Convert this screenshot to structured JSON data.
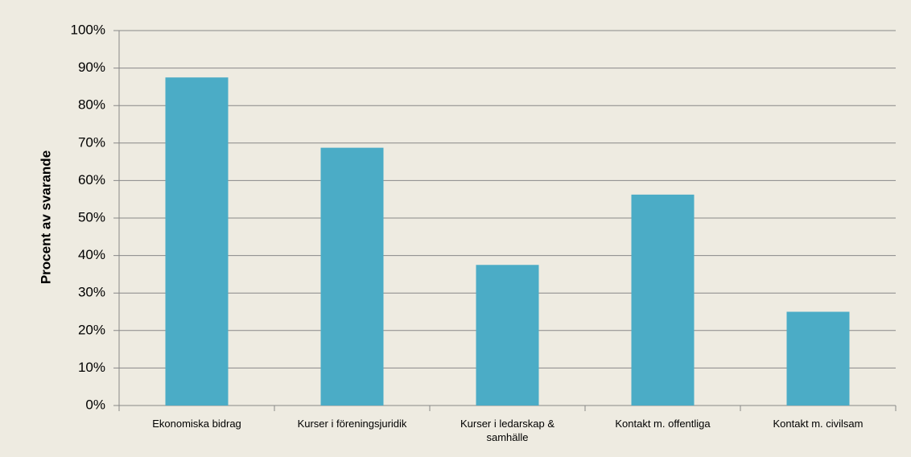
{
  "chart_data": {
    "type": "bar",
    "y_label": "Procent av svarande",
    "categories": [
      "Ekonomiska bidrag",
      "Kurser i föreningsjuridik",
      "Kurser i ledarskap & samhälle",
      "Kontakt m. offentliga",
      "Kontakt m. civilsam"
    ],
    "values": [
      87.5,
      68.75,
      37.5,
      56.25,
      25
    ],
    "color": "#4bacc6",
    "ylim": [
      0,
      100
    ],
    "yticks": [
      {
        "value": 0,
        "label": "0%"
      },
      {
        "value": 10,
        "label": "10%"
      },
      {
        "value": 20,
        "label": "20%"
      },
      {
        "value": 30,
        "label": "30%"
      },
      {
        "value": 40,
        "label": "40%"
      },
      {
        "value": 50,
        "label": "50%"
      },
      {
        "value": 60,
        "label": "60%"
      },
      {
        "value": 70,
        "label": "70%"
      },
      {
        "value": 80,
        "label": "80%"
      },
      {
        "value": 90,
        "label": "90%"
      },
      {
        "value": 100,
        "label": "100%"
      }
    ],
    "grid": true
  }
}
